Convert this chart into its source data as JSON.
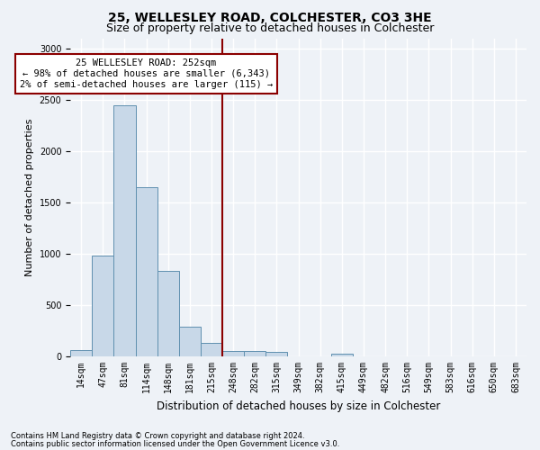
{
  "title": "25, WELLESLEY ROAD, COLCHESTER, CO3 3HE",
  "subtitle": "Size of property relative to detached houses in Colchester",
  "xlabel": "Distribution of detached houses by size in Colchester",
  "ylabel": "Number of detached properties",
  "categories": [
    "14sqm",
    "47sqm",
    "81sqm",
    "114sqm",
    "148sqm",
    "181sqm",
    "215sqm",
    "248sqm",
    "282sqm",
    "315sqm",
    "349sqm",
    "382sqm",
    "415sqm",
    "449sqm",
    "482sqm",
    "516sqm",
    "549sqm",
    "583sqm",
    "616sqm",
    "650sqm",
    "683sqm"
  ],
  "values": [
    60,
    980,
    2450,
    1650,
    830,
    290,
    130,
    55,
    50,
    45,
    0,
    0,
    25,
    0,
    0,
    0,
    0,
    0,
    0,
    0,
    0
  ],
  "bar_color": "#c8d8e8",
  "bar_edge_color": "#6090b0",
  "vline_color": "#8b0000",
  "annotation_text": "25 WELLESLEY ROAD: 252sqm\n← 98% of detached houses are smaller (6,343)\n2% of semi-detached houses are larger (115) →",
  "annotation_box_color": "#ffffff",
  "annotation_box_edge_color": "#8b0000",
  "footer_line1": "Contains HM Land Registry data © Crown copyright and database right 2024.",
  "footer_line2": "Contains public sector information licensed under the Open Government Licence v3.0.",
  "ylim": [
    0,
    3100
  ],
  "yticks": [
    0,
    500,
    1000,
    1500,
    2000,
    2500,
    3000
  ],
  "bg_color": "#eef2f7",
  "grid_color": "#ffffff",
  "title_fontsize": 10,
  "subtitle_fontsize": 9,
  "ylabel_fontsize": 8,
  "xlabel_fontsize": 8.5,
  "tick_fontsize": 7,
  "footer_fontsize": 6,
  "annot_fontsize": 7.5
}
